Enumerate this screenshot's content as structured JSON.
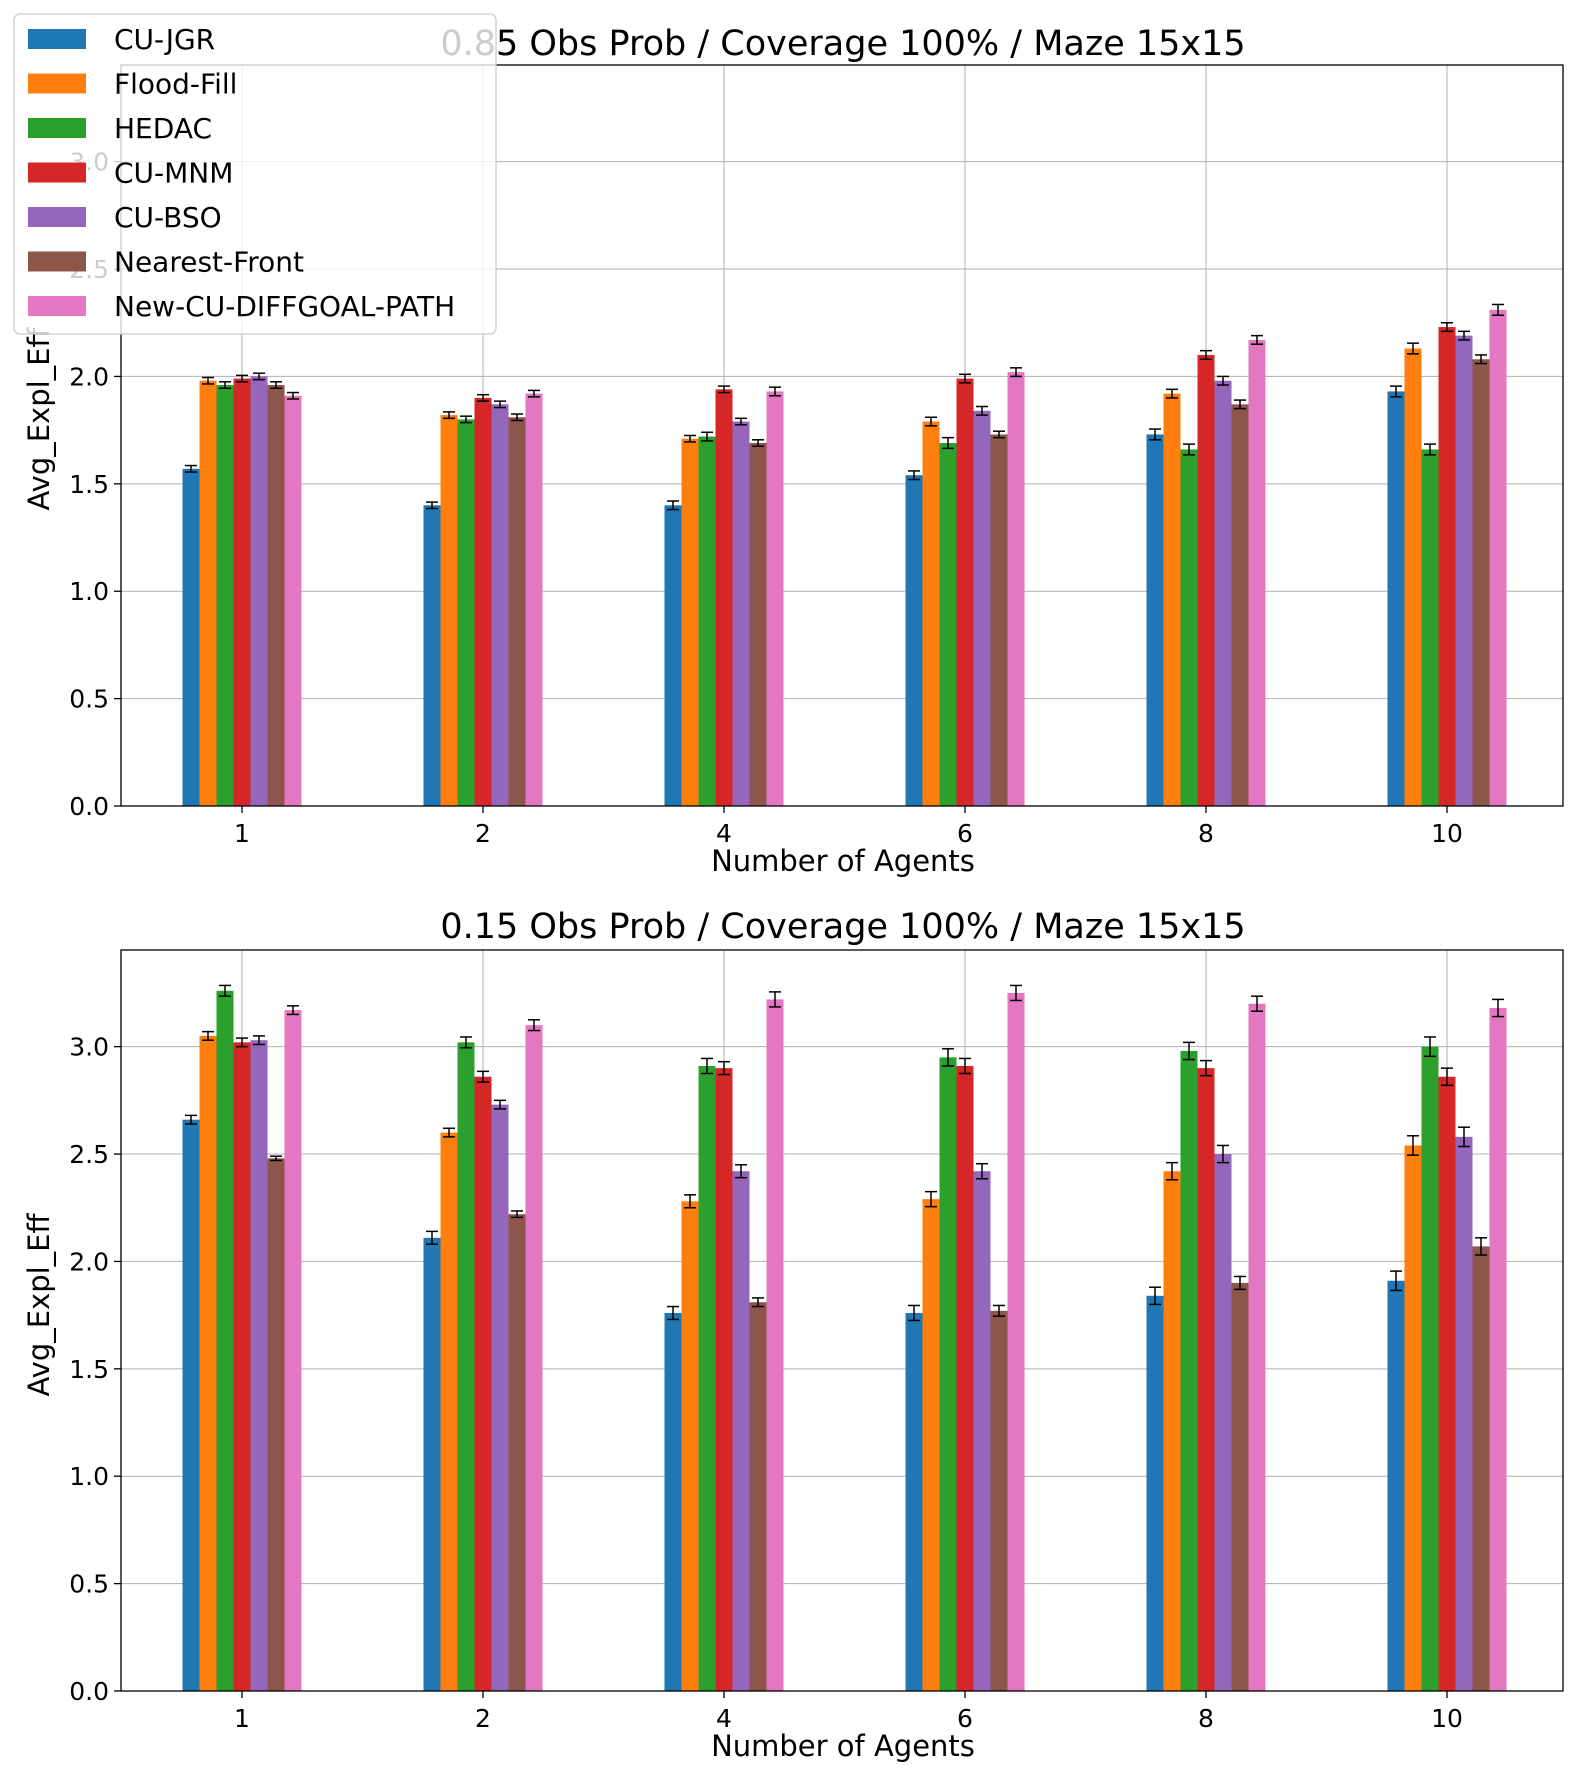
{
  "legend": {
    "placement": "top-left",
    "entries": [
      {
        "label": "CU-JGR",
        "color": "#1f77b4"
      },
      {
        "label": "Flood-Fill",
        "color": "#ff7f0e"
      },
      {
        "label": "HEDAC",
        "color": "#2ca02c"
      },
      {
        "label": "CU-MNM",
        "color": "#d62728"
      },
      {
        "label": "CU-BSO",
        "color": "#9467bd"
      },
      {
        "label": "Nearest-Front",
        "color": "#8c564b"
      },
      {
        "label": "New-CU-DIFFGOAL-PATH",
        "color": "#e377c2"
      }
    ]
  },
  "chart_data": [
    {
      "type": "bar",
      "title": "0.85 Obs Prob / Coverage 100% / Maze 15x15",
      "xlabel": "Number of Agents",
      "ylabel": "Avg_Expl_Eff",
      "categories": [
        "1",
        "2",
        "4",
        "6",
        "8",
        "10"
      ],
      "ylim": [
        0,
        3.45
      ],
      "yticks": [
        "0.0",
        "0.5",
        "1.0",
        "1.5",
        "2.0",
        "2.5",
        "3.0"
      ],
      "grid": true,
      "error_bars": true,
      "series": [
        {
          "name": "CU-JGR",
          "values": [
            1.57,
            1.4,
            1.4,
            1.54,
            1.73,
            1.93
          ],
          "errors": [
            0.015,
            0.015,
            0.02,
            0.02,
            0.025,
            0.025
          ]
        },
        {
          "name": "Flood-Fill",
          "values": [
            1.98,
            1.82,
            1.71,
            1.79,
            1.92,
            2.13
          ],
          "errors": [
            0.015,
            0.015,
            0.015,
            0.02,
            0.02,
            0.025
          ]
        },
        {
          "name": "HEDAC",
          "values": [
            1.96,
            1.8,
            1.72,
            1.69,
            1.66,
            1.66
          ],
          "errors": [
            0.015,
            0.015,
            0.02,
            0.025,
            0.025,
            0.025
          ]
        },
        {
          "name": "CU-MNM",
          "values": [
            1.99,
            1.9,
            1.94,
            1.99,
            2.1,
            2.23
          ],
          "errors": [
            0.015,
            0.015,
            0.015,
            0.02,
            0.02,
            0.02
          ]
        },
        {
          "name": "CU-BSO",
          "values": [
            2.0,
            1.87,
            1.79,
            1.84,
            1.98,
            2.19
          ],
          "errors": [
            0.015,
            0.015,
            0.015,
            0.02,
            0.02,
            0.02
          ]
        },
        {
          "name": "Nearest-Front",
          "values": [
            1.96,
            1.81,
            1.69,
            1.73,
            1.87,
            2.08
          ],
          "errors": [
            0.015,
            0.015,
            0.015,
            0.015,
            0.02,
            0.02
          ]
        },
        {
          "name": "New-CU-DIFFGOAL-PATH",
          "values": [
            1.91,
            1.92,
            1.93,
            2.02,
            2.17,
            2.31
          ],
          "errors": [
            0.015,
            0.015,
            0.02,
            0.02,
            0.02,
            0.025
          ]
        }
      ]
    },
    {
      "type": "bar",
      "title": "0.15 Obs Prob / Coverage 100% / Maze 15x15",
      "xlabel": "Number of Agents",
      "ylabel": "Avg_Expl_Eff",
      "categories": [
        "1",
        "2",
        "4",
        "6",
        "8",
        "10"
      ],
      "ylim": [
        0,
        3.45
      ],
      "yticks": [
        "0.0",
        "0.5",
        "1.0",
        "1.5",
        "2.0",
        "2.5",
        "3.0"
      ],
      "grid": true,
      "error_bars": true,
      "series": [
        {
          "name": "CU-JGR",
          "values": [
            2.66,
            2.11,
            1.76,
            1.76,
            1.84,
            1.91
          ],
          "errors": [
            0.02,
            0.03,
            0.03,
            0.035,
            0.04,
            0.045
          ]
        },
        {
          "name": "Flood-Fill",
          "values": [
            3.05,
            2.6,
            2.28,
            2.29,
            2.42,
            2.54
          ],
          "errors": [
            0.02,
            0.02,
            0.03,
            0.035,
            0.04,
            0.045
          ]
        },
        {
          "name": "HEDAC",
          "values": [
            3.26,
            3.02,
            2.91,
            2.95,
            2.98,
            3.0
          ],
          "errors": [
            0.025,
            0.025,
            0.035,
            0.04,
            0.04,
            0.045
          ]
        },
        {
          "name": "CU-MNM",
          "values": [
            3.02,
            2.86,
            2.9,
            2.91,
            2.9,
            2.86
          ],
          "errors": [
            0.02,
            0.025,
            0.03,
            0.035,
            0.035,
            0.04
          ]
        },
        {
          "name": "CU-BSO",
          "values": [
            3.03,
            2.73,
            2.42,
            2.42,
            2.5,
            2.58
          ],
          "errors": [
            0.02,
            0.02,
            0.03,
            0.035,
            0.04,
            0.045
          ]
        },
        {
          "name": "Nearest-Front",
          "values": [
            2.48,
            2.22,
            1.81,
            1.77,
            1.9,
            2.07
          ],
          "errors": [
            0.01,
            0.015,
            0.02,
            0.025,
            0.03,
            0.04
          ]
        },
        {
          "name": "New-CU-DIFFGOAL-PATH",
          "values": [
            3.17,
            3.1,
            3.22,
            3.25,
            3.2,
            3.18
          ],
          "errors": [
            0.02,
            0.025,
            0.035,
            0.035,
            0.035,
            0.04
          ]
        }
      ]
    }
  ]
}
